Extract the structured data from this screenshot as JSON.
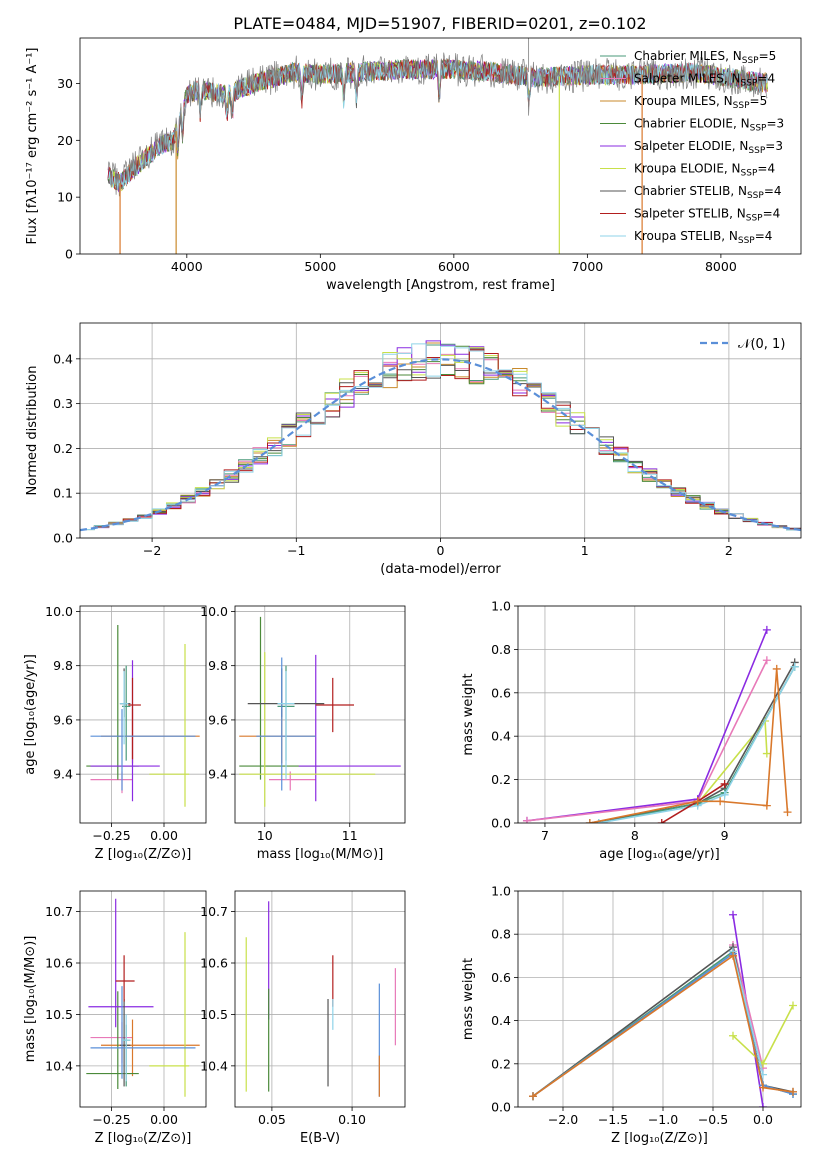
{
  "title": "PLATE=0484, MJD=51907, FIBERID=0201, z=0.102",
  "colors": {
    "Chabrier MILES": "#4a9a7a",
    "Salpeter MILES": "#e879b8",
    "Kroupa MILES": "#c98a2b",
    "Chabrier ELODIE": "#4b8a3a",
    "Salpeter ELODIE": "#8a2be2",
    "Kroupa ELODIE": "#c8e04a",
    "Chabrier STELIB": "#555555",
    "Salpeter STELIB": "#b21e1e",
    "Kroupa STELIB": "#8fd3e8",
    "extra_blue": "#5a8fd8",
    "extra_orange": "#d9782b"
  },
  "chart_data": [
    {
      "id": "spectrum",
      "type": "line",
      "xlabel": "wavelength [Angstrom, rest frame]",
      "ylabel": "Flux [fλ10⁻¹⁷ erg cm⁻² s⁻¹ A⁻¹]",
      "xlim": [
        3200,
        8600
      ],
      "ylim": [
        0,
        38
      ],
      "xticks": [
        4000,
        5000,
        6000,
        7000,
        8000
      ],
      "yticks": [
        0,
        10,
        20,
        30
      ],
      "grid": false,
      "legend_position": "top-right",
      "legend": [
        {
          "name": "Chabrier MILES, N",
          "sub": "SSP",
          "tail": "=5"
        },
        {
          "name": "Salpeter MILES, N",
          "sub": "SSP",
          "tail": "=4"
        },
        {
          "name": "Kroupa MILES, N",
          "sub": "SSP",
          "tail": "=5"
        },
        {
          "name": "Chabrier ELODIE, N",
          "sub": "SSP",
          "tail": "=3"
        },
        {
          "name": "Salpeter ELODIE, N",
          "sub": "SSP",
          "tail": "=3"
        },
        {
          "name": "Kroupa ELODIE, N",
          "sub": "SSP",
          "tail": "=4"
        },
        {
          "name": "Chabrier STELIB, N",
          "sub": "SSP",
          "tail": "=4"
        },
        {
          "name": "Salpeter STELIB, N",
          "sub": "SSP",
          "tail": "=4"
        },
        {
          "name": "Kroupa STELIB, N",
          "sub": "SSP",
          "tail": "=4"
        }
      ],
      "continuum": {
        "x": [
          3410,
          3500,
          3600,
          3700,
          3800,
          3900,
          4000,
          4100,
          4300,
          4500,
          4800,
          5000,
          5300,
          5600,
          6000,
          6300,
          6600,
          7000,
          7400,
          7800,
          8200,
          8350
        ],
        "y": [
          14,
          12.5,
          15,
          17,
          19,
          20,
          28,
          29,
          28,
          30,
          32,
          31.5,
          32,
          32.5,
          32.5,
          32,
          31,
          31.5,
          31.5,
          32,
          30.5,
          30
        ]
      }
    },
    {
      "id": "residuals",
      "type": "line",
      "xlabel": "(data-model)/error",
      "ylabel": "Normed distribution",
      "xlim": [
        -2.5,
        2.5
      ],
      "ylim": [
        0,
        0.48
      ],
      "xticks": [
        -2,
        -1,
        0,
        1,
        2
      ],
      "yticks": [
        0.0,
        0.1,
        0.2,
        0.3,
        0.4
      ],
      "grid": true,
      "legend_position": "top-right",
      "legend": [
        {
          "name": "𝒩(0, 1)"
        }
      ],
      "bin_width": 0.1
    },
    {
      "id": "age_vs_Z",
      "type": "scatter",
      "xlabel": "Z [log₁₀(Z/Z⊙)]",
      "ylabel": "age  [log₁₀(age/yr)]",
      "xlim": [
        -0.4,
        0.2
      ],
      "ylim": [
        9.22,
        10.02
      ],
      "xticks": [
        -0.25,
        0.0
      ],
      "yticks": [
        9.4,
        9.6,
        9.8,
        10.0
      ],
      "grid": true,
      "points": [
        {
          "c": "Chabrier MILES",
          "x": -0.18,
          "y": 9.65,
          "xl": 0.02,
          "xh": 0.02,
          "yl": 0.2,
          "yh": 0.15
        },
        {
          "c": "Salpeter MILES",
          "x": -0.2,
          "y": 9.38,
          "xl": 0.15,
          "xh": 0.05,
          "yl": 0.05,
          "yh": 0.03
        },
        {
          "c": "extra_orange",
          "x": -0.15,
          "y": 9.54,
          "xl": 0.15,
          "xh": 0.32,
          "yl": 0.1,
          "yh": 0.1
        },
        {
          "c": "Chabrier ELODIE",
          "x": -0.22,
          "y": 9.43,
          "xl": 0.15,
          "xh": 0.1,
          "yl": 0.05,
          "yh": 0.52
        },
        {
          "c": "Salpeter ELODIE",
          "x": -0.15,
          "y": 9.43,
          "xl": 0.2,
          "xh": 0.13,
          "yl": 0.13,
          "yh": 0.39
        },
        {
          "c": "Kroupa ELODIE",
          "x": 0.1,
          "y": 9.4,
          "xl": 0.17,
          "xh": 0.02,
          "yl": 0.12,
          "yh": 0.48
        },
        {
          "c": "Chabrier STELIB",
          "x": -0.19,
          "y": 9.66,
          "xl": 0.02,
          "xh": 0.03,
          "yl": 0.05,
          "yh": 0.13
        },
        {
          "c": "Salpeter STELIB",
          "x": -0.15,
          "y": 9.655,
          "xl": 0.02,
          "xh": 0.04,
          "yl": 0.2,
          "yh": 0.1
        },
        {
          "c": "extra_blue",
          "x": -0.2,
          "y": 9.54,
          "xl": 0.15,
          "xh": 0.35,
          "yl": 0.2,
          "yh": 0.1
        },
        {
          "c": "Kroupa STELIB",
          "x": -0.19,
          "y": 9.66,
          "xl": 0.02,
          "xh": 0.02,
          "yl": 0.15,
          "yh": 0.12
        }
      ]
    },
    {
      "id": "age_vs_mass",
      "type": "scatter",
      "xlabel": "mass [log₁₀(M/M⊙)]",
      "ylabel": "",
      "xlim": [
        10.33,
        10.73
      ],
      "ylim": [
        9.22,
        10.02
      ],
      "xticks": [
        10.4,
        10.6
      ],
      "yticks": [
        9.4,
        9.6,
        9.8,
        10.0
      ],
      "grid": true,
      "points": [
        {
          "c": "Chabrier MILES",
          "x": 10.45,
          "y": 9.65,
          "xl": 0.02,
          "xh": 0.02,
          "yl": 0.2,
          "yh": 0.15
        },
        {
          "c": "Salpeter MILES",
          "x": 10.46,
          "y": 9.38,
          "xl": 0.05,
          "xh": 0.06,
          "yl": 0.04,
          "yh": 0.03
        },
        {
          "c": "extra_orange",
          "x": 10.44,
          "y": 9.54,
          "xl": 0.1,
          "xh": 0.08,
          "yl": 0.1,
          "yh": 0.1
        },
        {
          "c": "Chabrier ELODIE",
          "x": 10.39,
          "y": 9.43,
          "xl": 0.05,
          "xh": 0.14,
          "yl": 0.05,
          "yh": 0.55
        },
        {
          "c": "Salpeter ELODIE",
          "x": 10.52,
          "y": 9.43,
          "xl": 0.04,
          "xh": 0.2,
          "yl": 0.13,
          "yh": 0.41
        },
        {
          "c": "Kroupa ELODIE",
          "x": 10.4,
          "y": 9.4,
          "xl": 0.06,
          "xh": 0.26,
          "yl": 0.12,
          "yh": 0.45
        },
        {
          "c": "Chabrier STELIB",
          "x": 10.44,
          "y": 9.66,
          "xl": 0.08,
          "xh": 0.1,
          "yl": 0.05,
          "yh": 0.13
        },
        {
          "c": "Salpeter STELIB",
          "x": 10.56,
          "y": 9.655,
          "xl": 0.04,
          "xh": 0.05,
          "yl": 0.1,
          "yh": 0.1
        },
        {
          "c": "extra_blue",
          "x": 10.44,
          "y": 9.54,
          "xl": 0.06,
          "xh": 0.08,
          "yl": 0.2,
          "yh": 0.29
        },
        {
          "c": "Kroupa STELIB",
          "x": 10.45,
          "y": 9.66,
          "xl": 0.02,
          "xh": 0.02,
          "yl": 0.28,
          "yh": 0.12
        }
      ]
    },
    {
      "id": "massweight_vs_age",
      "type": "line",
      "xlabel": "age  [log₁₀(age/yr)]",
      "ylabel": "mass weight",
      "xlim": [
        6.7,
        9.85
      ],
      "ylim": [
        0,
        1.0
      ],
      "xticks": [
        7,
        8,
        9
      ],
      "yticks": [
        0.0,
        0.2,
        0.4,
        0.6,
        0.8,
        1.0
      ],
      "grid": true,
      "series": [
        {
          "c": "Salpeter ELODIE",
          "x": [
            6.8,
            8.7,
            9.47
          ],
          "y": [
            0.01,
            0.11,
            0.89
          ]
        },
        {
          "c": "Salpeter MILES",
          "x": [
            6.8,
            8.7,
            9.47
          ],
          "y": [
            0.01,
            0.1,
            0.75
          ]
        },
        {
          "c": "Kroupa ELODIE",
          "x": [
            8.7,
            9.45,
            9.47
          ],
          "y": [
            0.09,
            0.47,
            0.32
          ]
        },
        {
          "c": "Chabrier STELIB",
          "x": [
            7.5,
            8.7,
            9.0,
            9.78
          ],
          "y": [
            0.0,
            0.09,
            0.16,
            0.74
          ]
        },
        {
          "c": "Chabrier MILES",
          "x": [
            7.6,
            8.7,
            9.0,
            9.78
          ],
          "y": [
            0.0,
            0.09,
            0.14,
            0.72
          ]
        },
        {
          "c": "Kroupa STELIB",
          "x": [
            7.6,
            8.7,
            9.0,
            9.78
          ],
          "y": [
            0.0,
            0.08,
            0.13,
            0.72
          ]
        },
        {
          "c": "Salpeter STELIB",
          "x": [
            8.3,
            8.7,
            9.0
          ],
          "y": [
            0.0,
            0.1,
            0.18
          ]
        },
        {
          "c": "extra_orange",
          "x": [
            7.5,
            8.7,
            8.95,
            9.47,
            9.58,
            9.7
          ],
          "y": [
            0.0,
            0.1,
            0.1,
            0.08,
            0.71,
            0.05
          ]
        }
      ]
    },
    {
      "id": "mass_vs_Z",
      "type": "scatter",
      "xlabel": "Z [log₁₀(Z/Z⊙)]",
      "ylabel": "mass [log₁₀(M/M⊙)]",
      "xlim": [
        -0.4,
        0.2
      ],
      "ylim": [
        10.32,
        10.74
      ],
      "xticks": [
        -0.25,
        0.0
      ],
      "yticks": [
        10.4,
        10.5,
        10.6,
        10.7
      ],
      "grid": true,
      "points": [
        {
          "c": "Chabrier MILES",
          "x": -0.18,
          "y": 10.45,
          "xl": 0.02,
          "xh": 0.02,
          "yl": 0.09,
          "yh": 0.03
        },
        {
          "c": "Salpeter MILES",
          "x": -0.2,
          "y": 10.455,
          "xl": 0.15,
          "xh": 0.05,
          "yl": 0.05,
          "yh": 0.03
        },
        {
          "c": "extra_orange",
          "x": -0.15,
          "y": 10.44,
          "xl": 0.15,
          "xh": 0.32,
          "yl": 0.06,
          "yh": 0.05
        },
        {
          "c": "Chabrier ELODIE",
          "x": -0.22,
          "y": 10.385,
          "xl": 0.15,
          "xh": 0.1,
          "yl": 0.03,
          "yh": 0.16
        },
        {
          "c": "Salpeter ELODIE",
          "x": -0.23,
          "y": 10.515,
          "xl": 0.13,
          "xh": 0.18,
          "yl": 0.04,
          "yh": 0.21
        },
        {
          "c": "Kroupa ELODIE",
          "x": 0.1,
          "y": 10.4,
          "xl": 0.17,
          "xh": 0.02,
          "yl": 0.06,
          "yh": 0.26
        },
        {
          "c": "Chabrier STELIB",
          "x": -0.19,
          "y": 10.44,
          "xl": 0.02,
          "xh": 0.03,
          "yl": 0.08,
          "yh": 0.09
        },
        {
          "c": "Salpeter STELIB",
          "x": -0.19,
          "y": 10.565,
          "xl": 0.04,
          "xh": 0.05,
          "yl": 0.04,
          "yh": 0.05
        },
        {
          "c": "extra_blue",
          "x": -0.2,
          "y": 10.435,
          "xl": 0.15,
          "xh": 0.35,
          "yl": 0.06,
          "yh": 0.12
        },
        {
          "c": "Kroupa STELIB",
          "x": -0.18,
          "y": 10.45,
          "xl": 0.02,
          "xh": 0.02,
          "yl": 0.08,
          "yh": 0.05
        }
      ]
    },
    {
      "id": "mass_vs_EBV",
      "type": "scatter",
      "xlabel": "E(B-V)",
      "ylabel": "",
      "xlim": [
        0.027,
        0.133
      ],
      "ylim": [
        10.32,
        10.74
      ],
      "xticks": [
        0.05,
        0.1
      ],
      "yticks": [
        10.4,
        10.5,
        10.6,
        10.7
      ],
      "grid": true,
      "points": [
        {
          "c": "Kroupa ELODIE",
          "x": 0.034,
          "y": 10.45,
          "xl": 0,
          "xh": 0,
          "yl": 0.1,
          "yh": 0.2
        },
        {
          "c": "Salpeter ELODIE",
          "x": 0.048,
          "y": 10.59,
          "xl": 0,
          "xh": 0,
          "yl": 0.1,
          "yh": 0.13
        },
        {
          "c": "Chabrier ELODIE",
          "x": 0.048,
          "y": 10.45,
          "xl": 0,
          "xh": 0,
          "yl": 0.1,
          "yh": 0.1
        },
        {
          "c": "Chabrier STELIB",
          "x": 0.085,
          "y": 10.44,
          "xl": 0,
          "xh": 0,
          "yl": 0.08,
          "yh": 0.09
        },
        {
          "c": "Salpeter STELIB",
          "x": 0.088,
          "y": 10.565,
          "xl": 0,
          "xh": 0,
          "yl": 0.05,
          "yh": 0.05
        },
        {
          "c": "Kroupa STELIB",
          "x": 0.088,
          "y": 10.5,
          "xl": 0,
          "xh": 0,
          "yl": 0.03,
          "yh": 0.03
        },
        {
          "c": "extra_blue",
          "x": 0.117,
          "y": 10.45,
          "xl": 0,
          "xh": 0,
          "yl": 0.11,
          "yh": 0.11
        },
        {
          "c": "extra_orange",
          "x": 0.117,
          "y": 10.38,
          "xl": 0,
          "xh": 0,
          "yl": 0.04,
          "yh": 0.04
        },
        {
          "c": "Salpeter MILES",
          "x": 0.127,
          "y": 10.52,
          "xl": 0,
          "xh": 0,
          "yl": 0.08,
          "yh": 0.07
        }
      ]
    },
    {
      "id": "massweight_vs_Z",
      "type": "line",
      "xlabel": "Z [log₁₀(Z/Z⊙)]",
      "ylabel": "mass weight",
      "xlim": [
        -2.45,
        0.38
      ],
      "ylim": [
        0,
        1.0
      ],
      "xticks": [
        -2.0,
        -1.5,
        -1.0,
        -0.5,
        0.0
      ],
      "yticks": [
        0.0,
        0.2,
        0.4,
        0.6,
        0.8,
        1.0
      ],
      "grid": true,
      "series": [
        {
          "c": "Salpeter ELODIE",
          "x": [
            -0.3,
            0.0
          ],
          "y": [
            0.89,
            0.0
          ]
        },
        {
          "c": "Salpeter MILES",
          "x": [
            -0.3,
            0.0
          ],
          "y": [
            0.75,
            0.18
          ]
        },
        {
          "c": "Kroupa ELODIE",
          "x": [
            -0.3,
            0.0,
            0.3
          ],
          "y": [
            0.33,
            0.2,
            0.47
          ]
        },
        {
          "c": "Chabrier STELIB",
          "x": [
            -2.3,
            -0.3,
            0.0,
            0.3
          ],
          "y": [
            0.05,
            0.74,
            0.1,
            0.07
          ]
        },
        {
          "c": "Chabrier MILES",
          "x": [
            -2.3,
            -0.3,
            0.0,
            0.3
          ],
          "y": [
            0.05,
            0.72,
            0.1,
            0.06
          ]
        },
        {
          "c": "extra_blue",
          "x": [
            -2.3,
            -0.3,
            0.0,
            0.3
          ],
          "y": [
            0.05,
            0.71,
            0.1,
            0.06
          ]
        },
        {
          "c": "Kroupa STELIB",
          "x": [
            -0.3,
            0.0
          ],
          "y": [
            0.72,
            0.15
          ]
        },
        {
          "c": "extra_orange",
          "x": [
            -2.3,
            -0.3,
            0.0,
            0.3
          ],
          "y": [
            0.05,
            0.7,
            0.09,
            0.07
          ]
        }
      ]
    }
  ]
}
